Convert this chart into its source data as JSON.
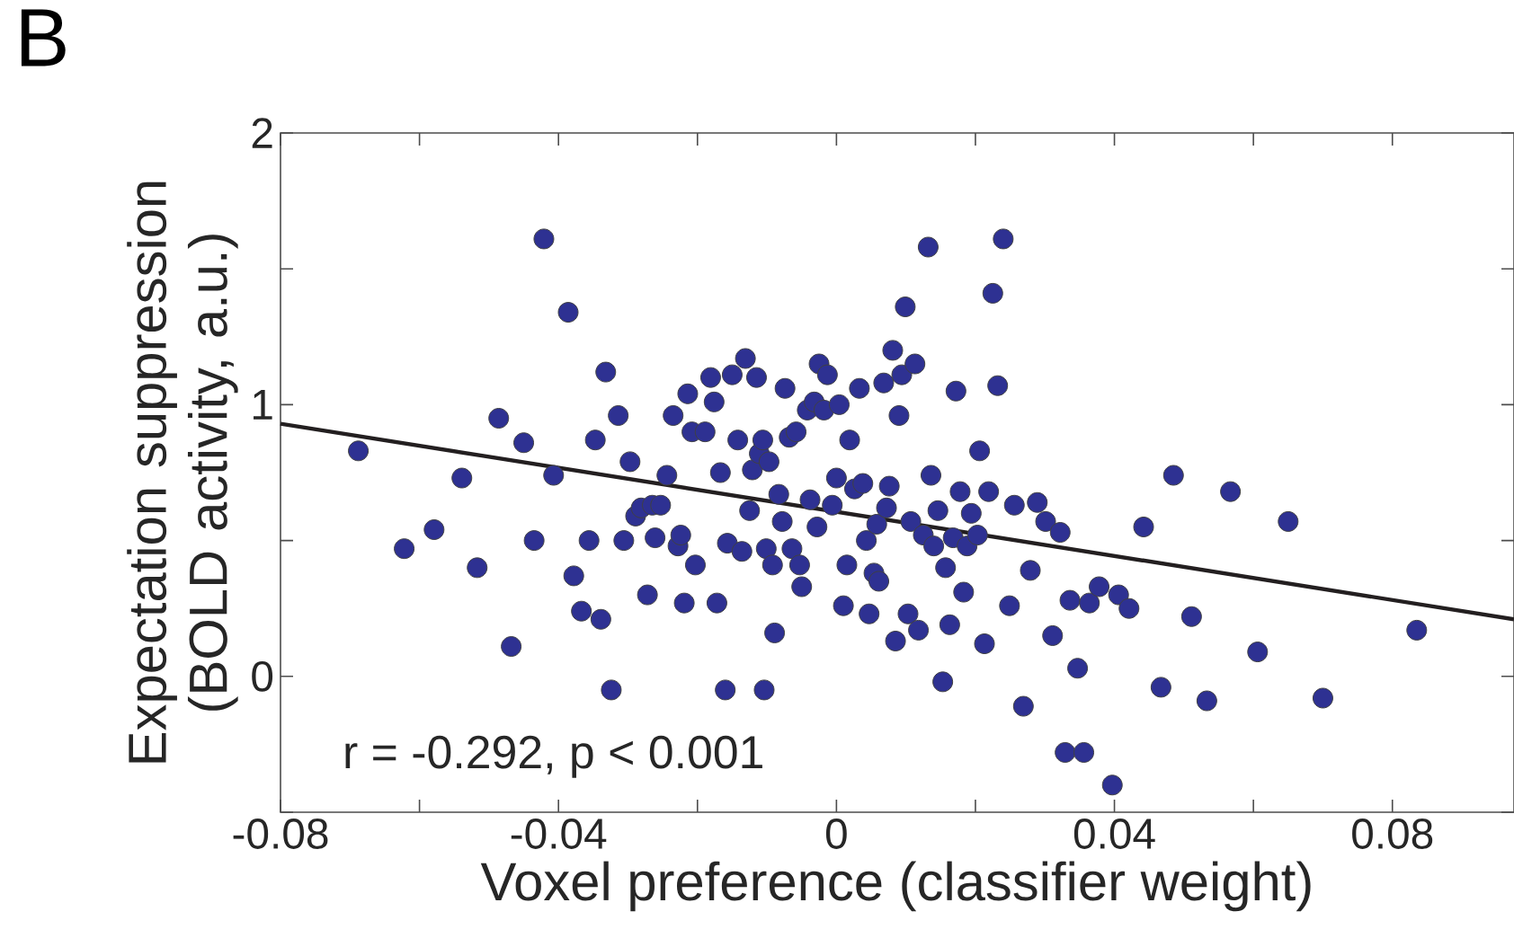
{
  "chart_data": {
    "type": "scatter",
    "title": "B",
    "xlabel": "Voxel preference (classifier weight)",
    "ylabel": "Expectation suppression (BOLD activity, a.u.)",
    "annotations": [
      "r = -0.292, p < 0.001"
    ],
    "xlim": [
      -0.08,
      0.0975
    ],
    "ylim": [
      -0.5,
      2
    ],
    "xticks": [
      -0.08,
      {
        "value": -0.06,
        "label": null
      },
      -0.04,
      {
        "value": -0.02,
        "label": null
      },
      0,
      {
        "value": 0.02,
        "label": null
      },
      0.04,
      {
        "value": 0.06,
        "label": null
      },
      0.08
    ],
    "yticks": [
      {
        "value": -0.5,
        "label": null
      },
      0,
      {
        "value": 0.5,
        "label": null
      },
      1,
      {
        "value": 1.5,
        "label": null
      },
      2
    ],
    "series": [
      {
        "marker": "circle",
        "color": "#2e3192",
        "x": [
          -0.0688,
          -0.0622,
          -0.0579,
          -0.0539,
          -0.0517,
          -0.0486,
          -0.0468,
          -0.045,
          -0.0435,
          -0.0421,
          -0.0407,
          -0.0386,
          -0.0378,
          -0.0367,
          -0.0356,
          -0.0347,
          -0.0339,
          -0.0332,
          -0.0324,
          -0.0314,
          -0.0306,
          -0.0297,
          -0.0289,
          -0.0281,
          -0.0272,
          -0.0265,
          -0.0261,
          -0.0253,
          -0.0244,
          -0.0235,
          -0.0228,
          -0.0224,
          -0.0219,
          -0.0214,
          -0.0208,
          -0.0203,
          -0.0189,
          -0.0181,
          -0.0176,
          -0.0172,
          -0.0167,
          -0.016,
          -0.0157,
          -0.015,
          -0.0142,
          -0.0136,
          -0.0131,
          -0.0125,
          -0.0121,
          -0.0115,
          -0.0111,
          -0.0106,
          -0.0104,
          -0.0101,
          -0.0097,
          -0.0092,
          -0.0089,
          -0.0083,
          -0.0078,
          -0.0074,
          -0.0068,
          -0.0064,
          -0.0058,
          -0.0053,
          -0.005,
          -0.0042,
          -0.0038,
          -0.0032,
          -0.0028,
          -0.0025,
          -0.0018,
          -0.0013,
          -0.0006,
          0.0,
          0.0004,
          0.001,
          0.0015,
          0.0019,
          0.0026,
          0.0033,
          0.0038,
          0.0043,
          0.0047,
          0.0054,
          0.0058,
          0.0061,
          0.0068,
          0.0072,
          0.0076,
          0.0081,
          0.0085,
          0.009,
          0.0094,
          0.0099,
          0.0103,
          0.0107,
          0.0113,
          0.0118,
          0.0125,
          0.0132,
          0.0136,
          0.014,
          0.0146,
          0.0153,
          0.0157,
          0.0163,
          0.0168,
          0.0172,
          0.0178,
          0.0183,
          0.0188,
          0.0194,
          0.0203,
          0.0206,
          0.0213,
          0.0219,
          0.0225,
          0.0232,
          0.024,
          0.0249,
          0.0256,
          0.0269,
          0.0279,
          0.0289,
          0.0301,
          0.0311,
          0.0322,
          0.0329,
          0.0336,
          0.0347,
          0.0356,
          0.0364,
          0.0378,
          0.0397,
          0.0406,
          0.0421,
          0.0442,
          0.0467,
          0.0485,
          0.0511,
          0.0533,
          0.0567,
          0.0606,
          0.065,
          0.07,
          0.0835
        ],
        "values": [
          0.83,
          0.47,
          0.54,
          0.73,
          0.4,
          0.95,
          0.11,
          0.86,
          0.5,
          1.61,
          0.74,
          1.34,
          0.37,
          0.24,
          0.5,
          0.87,
          0.21,
          1.12,
          -0.05,
          0.96,
          0.5,
          0.79,
          0.59,
          0.62,
          0.3,
          0.63,
          0.51,
          0.63,
          0.74,
          0.96,
          0.48,
          0.52,
          0.27,
          1.04,
          0.9,
          0.41,
          0.9,
          1.1,
          1.01,
          0.27,
          0.75,
          -0.05,
          0.49,
          1.11,
          0.87,
          0.46,
          1.17,
          0.61,
          0.76,
          1.1,
          0.82,
          0.87,
          -0.05,
          0.47,
          0.79,
          0.41,
          0.16,
          0.67,
          0.57,
          1.06,
          0.88,
          0.47,
          0.9,
          0.41,
          0.33,
          0.98,
          0.65,
          1.01,
          0.55,
          1.15,
          0.98,
          1.11,
          0.63,
          0.73,
          1.0,
          0.26,
          0.41,
          0.87,
          0.69,
          1.06,
          0.71,
          0.5,
          0.23,
          0.38,
          0.56,
          0.35,
          1.08,
          0.62,
          0.7,
          1.2,
          0.13,
          0.96,
          1.11,
          1.36,
          0.23,
          0.57,
          1.15,
          0.17,
          0.52,
          1.58,
          0.74,
          0.48,
          0.61,
          -0.02,
          0.4,
          0.19,
          0.51,
          1.05,
          0.68,
          0.31,
          0.48,
          0.6,
          0.52,
          0.83,
          0.12,
          0.68,
          1.41,
          1.07,
          1.61,
          0.26,
          0.63,
          -0.11,
          0.39,
          0.64,
          0.57,
          0.15,
          0.53,
          -0.28,
          0.28,
          0.03,
          -0.28,
          0.27,
          0.33,
          -0.4,
          0.3,
          0.25,
          0.55,
          -0.04,
          0.74,
          0.22,
          -0.09,
          0.68,
          0.09,
          0.57,
          -0.08,
          0.17
        ]
      },
      {
        "type": "line",
        "marker": "none",
        "color": "#231f20",
        "line_style": "solid",
        "x": [
          -0.08,
          0.0975
        ],
        "values": [
          0.93,
          0.21
        ]
      }
    ]
  }
}
